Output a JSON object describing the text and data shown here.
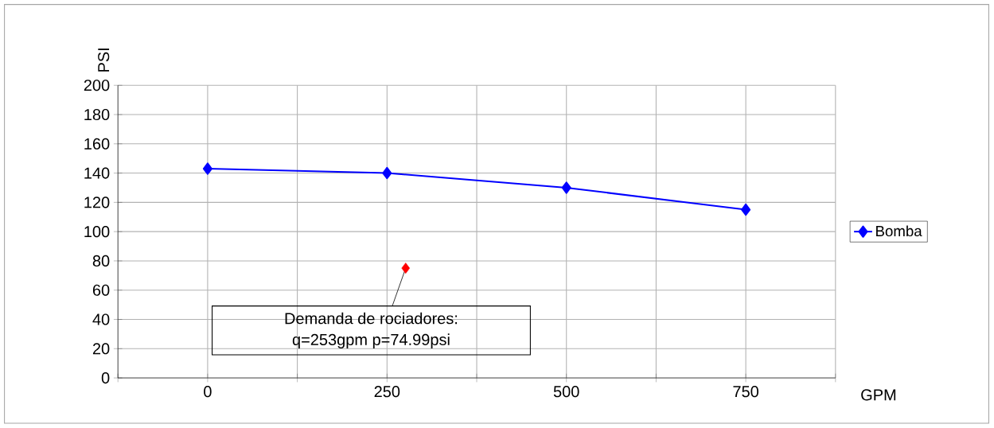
{
  "chart_data": {
    "type": "line",
    "xlabel": "GPM",
    "ylabel": "PSI",
    "xlim": [
      -125,
      875
    ],
    "ylim": [
      0,
      200
    ],
    "xticks": [
      {
        "value": -125,
        "label": null
      },
      0,
      {
        "value": 125,
        "label": null
      },
      250,
      {
        "value": 375,
        "label": null
      },
      500,
      {
        "value": 625,
        "label": null
      },
      750,
      {
        "value": 875,
        "label": null
      }
    ],
    "yticks": [
      0,
      20,
      40,
      60,
      80,
      100,
      120,
      140,
      160,
      180,
      200
    ],
    "grid": true,
    "legend": "right",
    "marker": "diamond",
    "series": [
      {
        "name": "Bomba",
        "color": "#0000ff",
        "x": [
          0,
          250,
          500,
          750
        ],
        "values": [
          143,
          140,
          130,
          115
        ]
      },
      {
        "type": "scatter",
        "color": "#ff0000",
        "x": [
          276
        ],
        "values": [
          75
        ]
      }
    ],
    "annotations": [
      {
        "text": "Demanda de rociadores:",
        "x": 276,
        "y": 75
      },
      "q=253gpm   p=74.99psi"
    ]
  }
}
